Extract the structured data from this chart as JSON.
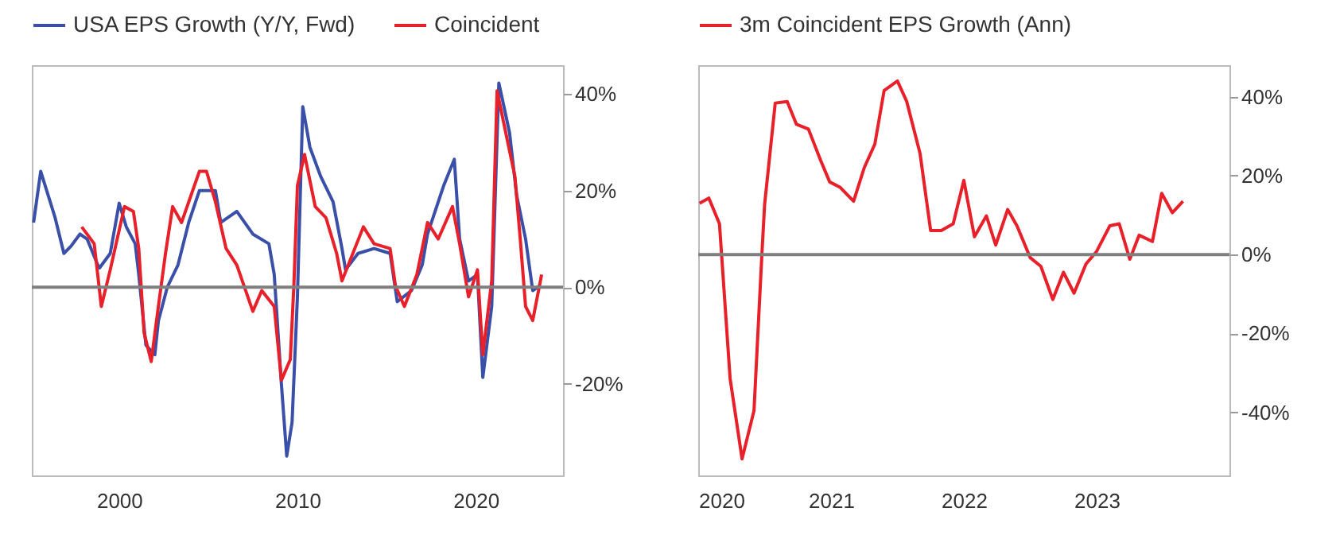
{
  "chart_data": [
    {
      "type": "line",
      "legend": "top",
      "xlim": [
        1995.1,
        2024.9
      ],
      "xticks": [
        2000,
        2010,
        2020
      ],
      "ylim": [
        -39,
        46
      ],
      "yticks": [
        {
          "value": 40,
          "label": "40%"
        },
        {
          "value": 20,
          "label": "20%"
        },
        {
          "value": 0,
          "label": "0%"
        },
        {
          "value": -20,
          "label": "-20%"
        }
      ],
      "grid": false,
      "ref_lines": [
        {
          "axis": "y",
          "value": 0,
          "label": null,
          "color": "#7f7f7f"
        }
      ],
      "series": [
        {
          "name": "USA EPS Growth (Y/Y, Fwd)",
          "color": "#3a4fa8",
          "x": [
            1995.2,
            1995.6,
            1996.4,
            1996.9,
            1997.3,
            1997.8,
            1998.2,
            1998.8,
            1998.9,
            1999.5,
            2000,
            2000.4,
            2000.9,
            2001.1,
            2001.5,
            2002,
            2002.2,
            2002.7,
            2003.3,
            2003.9,
            2004.5,
            2005.4,
            2005.7,
            2006.6,
            2007.5,
            2008.4,
            2008.7,
            2009.1,
            2009.4,
            2009.7,
            2010,
            2010.3,
            2010.7,
            2011.3,
            2012,
            2012.5,
            2012.7,
            2013.4,
            2014.3,
            2015.2,
            2015.6,
            2016.4,
            2017,
            2017.3,
            2018.2,
            2018.8,
            2019.1,
            2019.6,
            2020.1,
            2020.4,
            2020.9,
            2021.3,
            2021.9,
            2022.3,
            2022.8,
            2023.2,
            2023.6
          ],
          "values": [
            13.4,
            24,
            14.5,
            7,
            8.5,
            11,
            10,
            4.6,
            4,
            7,
            17.4,
            12.5,
            9,
            2.6,
            -12,
            -14,
            -7,
            0,
            4.6,
            13.4,
            20,
            20,
            13.4,
            15.7,
            11,
            9,
            2.6,
            -20,
            -35,
            -28,
            -2,
            37.4,
            29,
            23,
            17.7,
            8,
            3.6,
            7,
            8,
            7,
            -3,
            -0.7,
            4.6,
            11,
            21,
            26.5,
            10,
            1.3,
            2.6,
            -18.7,
            -4,
            42.3,
            32,
            19,
            10,
            -0.7,
            0.3
          ]
        },
        {
          "name": "Coincident",
          "color": "#e8202a",
          "x": [
            1997.9,
            1998.6,
            1999,
            1999.5,
            2000.3,
            2000.8,
            2001.1,
            2001.4,
            2001.8,
            2002.2,
            2002.6,
            2003,
            2003.5,
            2004.5,
            2004.9,
            2005.4,
            2006,
            2006.6,
            2007.5,
            2008,
            2008.7,
            2009.1,
            2009.6,
            2009.8,
            2010,
            2010.4,
            2011,
            2011.6,
            2012.2,
            2012.5,
            2013.7,
            2014.3,
            2015.2,
            2015.5,
            2016,
            2016.7,
            2017.3,
            2017.9,
            2018.7,
            2019.1,
            2019.6,
            2020.1,
            2020.4,
            2020.9,
            2021.2,
            2021.8,
            2022.2,
            2022.5,
            2022.8,
            2023.2,
            2023.7
          ],
          "values": [
            12.5,
            9,
            -4,
            3.6,
            16.7,
            15.7,
            8,
            -9.5,
            -15.4,
            -4,
            7,
            16.7,
            13.4,
            24,
            24,
            17.7,
            8,
            4.6,
            -5,
            -0.7,
            -4,
            -19.3,
            -15,
            0.3,
            21,
            27.5,
            16.7,
            14.4,
            7,
            1.3,
            12.5,
            9,
            8,
            0.3,
            -4,
            2.6,
            13.4,
            10,
            16.7,
            9,
            -2,
            3.6,
            -14,
            1.3,
            40.7,
            30,
            23,
            10,
            -4,
            -6.9,
            2.6
          ]
        }
      ]
    },
    {
      "type": "line",
      "legend": "top",
      "xlim": [
        2020,
        2024
      ],
      "xticks": [
        2020,
        2021,
        2022,
        2023
      ],
      "ylim": [
        -56,
        48
      ],
      "yticks": [
        {
          "value": 40,
          "label": "40%"
        },
        {
          "value": 20,
          "label": "20%"
        },
        {
          "value": 0,
          "label": "0%"
        },
        {
          "value": -20,
          "label": "-20%"
        },
        {
          "value": -40,
          "label": "-40%"
        }
      ],
      "grid": false,
      "ref_lines": [
        {
          "axis": "y",
          "value": 0,
          "label": null,
          "color": "#7f7f7f"
        }
      ],
      "series": [
        {
          "name": "3m Coincident EPS Growth (Ann)",
          "color": "#e8202a",
          "x": [
            2020.01,
            2020.08,
            2020.16,
            2020.24,
            2020.33,
            2020.42,
            2020.48,
            2020.5,
            2020.58,
            2020.67,
            2020.74,
            2020.83,
            2020.92,
            2020.99,
            2021.07,
            2021.17,
            2021.25,
            2021.33,
            2021.4,
            2021.5,
            2021.57,
            2021.67,
            2021.75,
            2021.83,
            2021.92,
            2022.0,
            2022.08,
            2022.17,
            2022.24,
            2022.33,
            2022.4,
            2022.5,
            2022.58,
            2022.67,
            2022.75,
            2022.83,
            2022.92,
            2023.0,
            2023.1,
            2023.17,
            2023.25,
            2023.32,
            2023.42,
            2023.49,
            2023.57,
            2023.65
          ],
          "values": [
            13,
            14.3,
            7.8,
            -31.4,
            -51.8,
            -39.6,
            0.4,
            12.7,
            38.4,
            38.8,
            33,
            31.8,
            24,
            18.4,
            17,
            13.5,
            22,
            28,
            41.6,
            44,
            38.8,
            25.7,
            6.1,
            6.1,
            7.8,
            18.8,
            4.5,
            9.8,
            2.4,
            11.4,
            7.3,
            -0.8,
            -3,
            -11.4,
            -4.5,
            -9.8,
            -2.4,
            0.8,
            7.3,
            7.8,
            -1.2,
            4.9,
            3.3,
            15.5,
            10.6,
            13.5
          ]
        }
      ]
    }
  ]
}
